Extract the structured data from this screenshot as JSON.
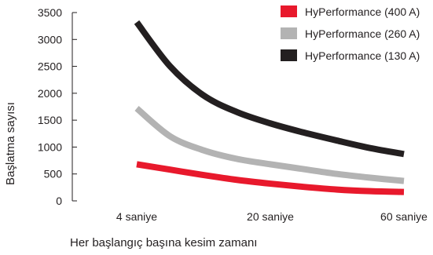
{
  "chart_data": {
    "type": "line",
    "title": "",
    "xlabel": "Her başlangıç başına kesim zamanı",
    "ylabel": "Başlatma sayısı",
    "ylim": [
      0,
      3500
    ],
    "yticks": [
      "0",
      "500",
      "1000",
      "1500",
      "2000",
      "2500",
      "3000",
      "3500"
    ],
    "categories": [
      "4 saniye",
      "20 saniye",
      "60 saniye"
    ],
    "grid": false,
    "legend_position": "top-right",
    "series": [
      {
        "name": "HyPerformance (400 A)",
        "color": "#e8192c",
        "x": [
          0,
          0.25,
          0.5,
          0.75,
          1,
          1.25,
          1.5,
          1.75,
          2
        ],
        "y": [
          680,
          580,
          480,
          390,
          320,
          260,
          210,
          180,
          165
        ]
      },
      {
        "name": "HyPerformance (260 A)",
        "color": "#b3b3b3",
        "x": [
          0,
          0.25,
          0.5,
          0.75,
          1,
          1.25,
          1.5,
          1.75,
          2
        ],
        "y": [
          1720,
          1200,
          940,
          780,
          680,
          590,
          500,
          430,
          370
        ]
      },
      {
        "name": "HyPerformance (130 A)",
        "color": "#231f20",
        "x": [
          0,
          0.25,
          0.5,
          0.75,
          1,
          1.25,
          1.5,
          1.75,
          2
        ],
        "y": [
          3320,
          2500,
          1960,
          1650,
          1440,
          1270,
          1120,
          980,
          870
        ]
      }
    ]
  }
}
